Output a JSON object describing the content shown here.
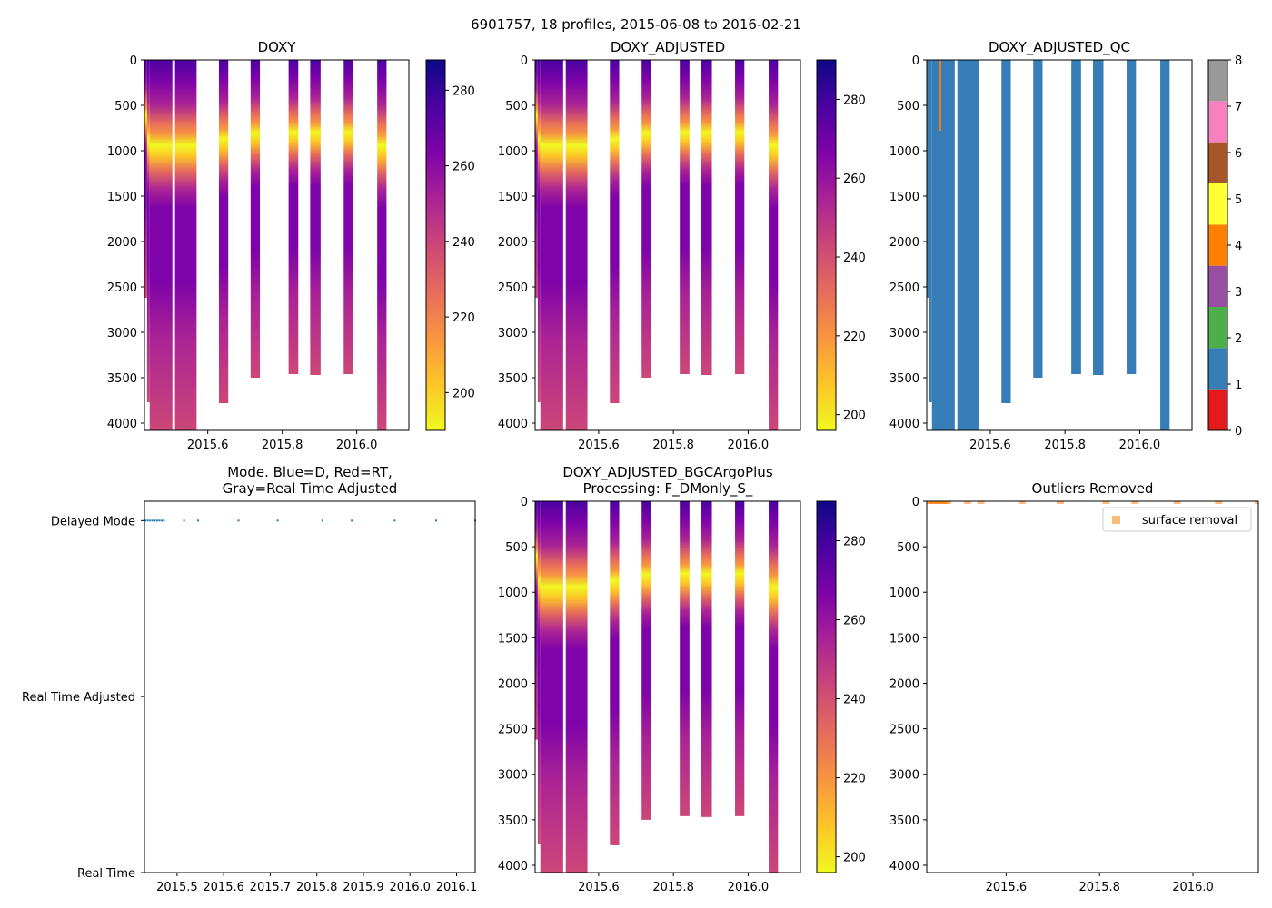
{
  "suptitle": "6901757, 18 profiles, 2015-06-08 to 2016-02-21",
  "colors": {
    "plasma": [
      "#f0f921",
      "#fdc527",
      "#f89540",
      "#e66c5c",
      "#cc4778",
      "#aa2395",
      "#7e03a8",
      "#4c02a1",
      "#0d0887"
    ],
    "qc_colors": [
      "#e41a1c",
      "#377eb8",
      "#4daf4a",
      "#984ea3",
      "#ff7f00",
      "#ffff33",
      "#a65628",
      "#f781bf",
      "#999999"
    ],
    "mode_point": "#1f77b4",
    "outlier": "#ff7f0e"
  },
  "chart_data": [
    {
      "id": "doxy",
      "type": "heatmap",
      "title": "DOXY",
      "x_ticks": [
        "2015.6",
        "2015.8",
        "2016.0"
      ],
      "x_tick_values": [
        2015.6,
        2015.8,
        2016.0
      ],
      "xlim": [
        2015.43,
        2016.14
      ],
      "y_ticks": [
        "0",
        "500",
        "1000",
        "1500",
        "2000",
        "2500",
        "3000",
        "3500",
        "4000"
      ],
      "ylim": [
        4080,
        0
      ],
      "colorbar": {
        "ticks": [
          "200",
          "220",
          "240",
          "260",
          "280"
        ],
        "tick_values": [
          200,
          220,
          240,
          260,
          280
        ],
        "range": [
          190,
          288
        ]
      },
      "profiles": [
        {
          "x0": 2015.43,
          "x1": 2015.437,
          "max_depth": 2620
        },
        {
          "x0": 2015.437,
          "x1": 2015.444,
          "max_depth": 3770
        },
        {
          "x0": 2015.444,
          "x1": 2015.505,
          "max_depth": 4080
        },
        {
          "x0": 2015.512,
          "x1": 2015.57,
          "max_depth": 4080
        },
        {
          "x0": 2015.63,
          "x1": 2015.655,
          "max_depth": 3780
        },
        {
          "x0": 2015.715,
          "x1": 2015.74,
          "max_depth": 3500
        },
        {
          "x0": 2015.817,
          "x1": 2015.843,
          "max_depth": 3460
        },
        {
          "x0": 2015.875,
          "x1": 2015.903,
          "max_depth": 3470
        },
        {
          "x0": 2015.965,
          "x1": 2015.99,
          "max_depth": 3460
        },
        {
          "x0": 2016.055,
          "x1": 2016.08,
          "max_depth": 4080
        }
      ]
    },
    {
      "id": "doxy_adj",
      "type": "heatmap",
      "title": "DOXY_ADJUSTED",
      "x_ticks": [
        "2015.6",
        "2015.8",
        "2016.0"
      ],
      "x_tick_values": [
        2015.6,
        2015.8,
        2016.0
      ],
      "xlim": [
        2015.43,
        2016.14
      ],
      "y_ticks": [
        "0",
        "500",
        "1000",
        "1500",
        "2000",
        "2500",
        "3000",
        "3500",
        "4000"
      ],
      "ylim": [
        4080,
        0
      ],
      "colorbar": {
        "ticks": [
          "200",
          "220",
          "240",
          "260",
          "280"
        ],
        "tick_values": [
          200,
          220,
          240,
          260,
          280
        ],
        "range": [
          196,
          290
        ]
      }
    },
    {
      "id": "doxy_qc",
      "type": "heatmap",
      "title": "DOXY_ADJUSTED_QC",
      "x_ticks": [
        "2015.6",
        "2015.8",
        "2016.0"
      ],
      "x_tick_values": [
        2015.6,
        2015.8,
        2016.0
      ],
      "xlim": [
        2015.43,
        2016.14
      ],
      "y_ticks": [
        "0",
        "500",
        "1000",
        "1500",
        "2000",
        "2500",
        "3000",
        "3500",
        "4000"
      ],
      "ylim": [
        4080,
        0
      ],
      "colorbar": {
        "ticks": [
          "0",
          "1",
          "2",
          "3",
          "4",
          "5",
          "6",
          "7",
          "8"
        ],
        "tick_values": [
          0,
          1,
          2,
          3,
          4,
          5,
          6,
          7,
          8
        ],
        "range": [
          0,
          8
        ]
      },
      "qc_flag": 1,
      "flag4_line": {
        "x": 2015.466,
        "depth_range": [
          0,
          780
        ]
      }
    },
    {
      "id": "mode",
      "type": "scatter",
      "title": "Mode. Blue=D, Red=RT,",
      "title2": "Gray=Real Time Adjusted",
      "x_ticks": [
        "2015.5",
        "2015.6",
        "2015.7",
        "2015.8",
        "2015.9",
        "2016.0",
        "2016.1"
      ],
      "x_tick_values": [
        2015.5,
        2015.6,
        2015.7,
        2015.8,
        2015.9,
        2016.0,
        2016.1
      ],
      "xlim": [
        2015.43,
        2016.14
      ],
      "y_ticks": [
        "Delayed Mode",
        "Real Time Adjusted",
        "Real Time"
      ],
      "y_tick_values": [
        2,
        1,
        0
      ],
      "ylim": [
        0,
        2.11
      ],
      "points_x": [
        2015.432,
        2015.437,
        2015.442,
        2015.447,
        2015.452,
        2015.457,
        2015.462,
        2015.467,
        2015.472,
        2015.515,
        2015.545,
        2015.632,
        2015.716,
        2015.812,
        2015.875,
        2015.967,
        2016.056,
        2016.14
      ],
      "points_y": 2
    },
    {
      "id": "doxy_bgc",
      "type": "heatmap",
      "title": "DOXY_ADJUSTED_BGCArgoPlus",
      "title2": "Processing: F_DMonly_S_",
      "x_ticks": [
        "2015.6",
        "2015.8",
        "2016.0"
      ],
      "x_tick_values": [
        2015.6,
        2015.8,
        2016.0
      ],
      "xlim": [
        2015.43,
        2016.14
      ],
      "y_ticks": [
        "0",
        "500",
        "1000",
        "1500",
        "2000",
        "2500",
        "3000",
        "3500",
        "4000"
      ],
      "ylim": [
        4080,
        0
      ],
      "colorbar": {
        "ticks": [
          "200",
          "220",
          "240",
          "260",
          "280"
        ],
        "tick_values": [
          200,
          220,
          240,
          260,
          280
        ],
        "range": [
          196,
          290
        ]
      }
    },
    {
      "id": "outliers",
      "type": "scatter",
      "title": "Outliers Removed",
      "x_ticks": [
        "2015.6",
        "2015.8",
        "2016.0"
      ],
      "x_tick_values": [
        2015.6,
        2015.8,
        2016.0
      ],
      "xlim": [
        2015.43,
        2016.14
      ],
      "y_ticks": [
        "0",
        "500",
        "1000",
        "1500",
        "2000",
        "2500",
        "3000",
        "3500",
        "4000"
      ],
      "ylim": [
        4080,
        0
      ],
      "legend": "surface removal",
      "legend_loc": "upper right",
      "points_x": [
        2015.435,
        2015.44,
        2015.445,
        2015.45,
        2015.455,
        2015.46,
        2015.465,
        2015.47,
        2015.475,
        2015.517,
        2015.546,
        2015.634,
        2015.716,
        2015.814,
        2015.876,
        2015.966,
        2016.055,
        2016.14
      ],
      "points_depth": 0
    }
  ]
}
